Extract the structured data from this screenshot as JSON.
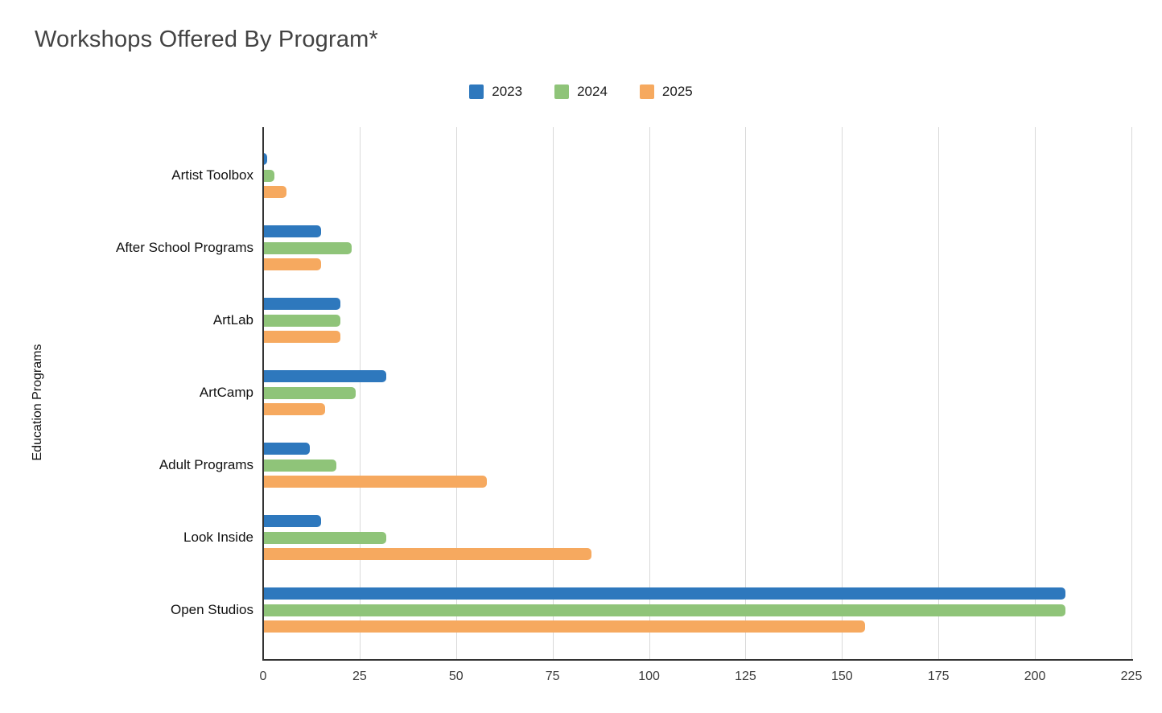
{
  "title": "Workshops Offered By Program*",
  "colors": {
    "background": "#ffffff",
    "title_text": "#434343",
    "axis": "#333333",
    "gridline": "#d9d9d9",
    "tick_label": "#3c3c3c",
    "category_label": "#111111"
  },
  "chart_data": {
    "type": "bar",
    "orientation": "horizontal",
    "title": "Workshops Offered By Program*",
    "xlabel": "",
    "ylabel": "Education Programs",
    "xlim": [
      0,
      225
    ],
    "x_ticks": [
      0,
      25,
      50,
      75,
      100,
      125,
      150,
      175,
      200,
      225
    ],
    "grid": true,
    "legend_position": "top-center",
    "categories": [
      "Artist Toolbox",
      "After School Programs",
      "ArtLab",
      "ArtCamp",
      "Adult Programs",
      "Look Inside",
      "Open Studios"
    ],
    "series": [
      {
        "name": "2023",
        "color": "#2e78bd",
        "values": [
          1,
          15,
          20,
          32,
          12,
          15,
          208
        ]
      },
      {
        "name": "2024",
        "color": "#8fc479",
        "values": [
          3,
          23,
          20,
          24,
          19,
          32,
          208
        ]
      },
      {
        "name": "2025",
        "color": "#f6a95f",
        "values": [
          6,
          15,
          20,
          16,
          58,
          85,
          156
        ]
      }
    ]
  }
}
